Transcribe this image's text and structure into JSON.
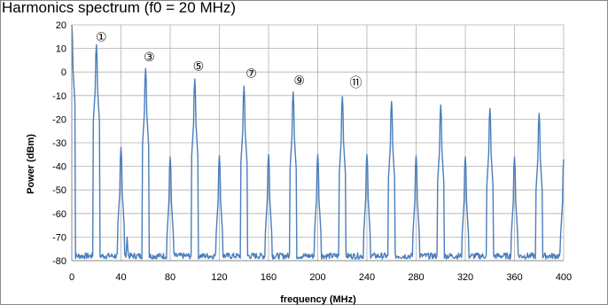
{
  "chart_data": {
    "type": "line",
    "title": "Harmonics spectrum (f0 = 20 MHz)",
    "xlabel": "frequency (MHz)",
    "ylabel": "Power (dBm)",
    "xlim": [
      0,
      400
    ],
    "ylim": [
      -80,
      20
    ],
    "xticks": [
      0,
      40,
      80,
      120,
      160,
      200,
      240,
      280,
      320,
      360,
      400
    ],
    "yticks": [
      20,
      10,
      0,
      -10,
      -20,
      -30,
      -40,
      -50,
      -60,
      -70,
      -80
    ],
    "grid": true,
    "noise_floor": -78,
    "series": [
      {
        "color": "#4a7ebb",
        "peaks": [
          {
            "x": 0,
            "y": 20
          },
          {
            "x": 20,
            "y": 11.5
          },
          {
            "x": 40,
            "y": -32
          },
          {
            "x": 45,
            "y": -70
          },
          {
            "x": 60,
            "y": 1.5
          },
          {
            "x": 80,
            "y": -36
          },
          {
            "x": 100,
            "y": -3
          },
          {
            "x": 120,
            "y": -35.5
          },
          {
            "x": 140,
            "y": -6
          },
          {
            "x": 160,
            "y": -35
          },
          {
            "x": 180,
            "y": -8.5
          },
          {
            "x": 200,
            "y": -35
          },
          {
            "x": 220,
            "y": -10.5
          },
          {
            "x": 240,
            "y": -35
          },
          {
            "x": 260,
            "y": -12.5
          },
          {
            "x": 280,
            "y": -35.5
          },
          {
            "x": 300,
            "y": -14
          },
          {
            "x": 320,
            "y": -36
          },
          {
            "x": 340,
            "y": -15.5
          },
          {
            "x": 360,
            "y": -36
          },
          {
            "x": 380,
            "y": -17.5
          },
          {
            "x": 400,
            "y": -37
          }
        ]
      }
    ],
    "annotations": [
      {
        "text": "①",
        "x": 24,
        "y": 15
      },
      {
        "text": "③",
        "x": 63,
        "y": 6.5
      },
      {
        "text": "⑤",
        "x": 103,
        "y": 2.5
      },
      {
        "text": "⑦",
        "x": 146,
        "y": -0.5
      },
      {
        "text": "⑨",
        "x": 185,
        "y": -3.5
      },
      {
        "text": "⑪",
        "x": 231,
        "y": -4.5
      }
    ]
  }
}
